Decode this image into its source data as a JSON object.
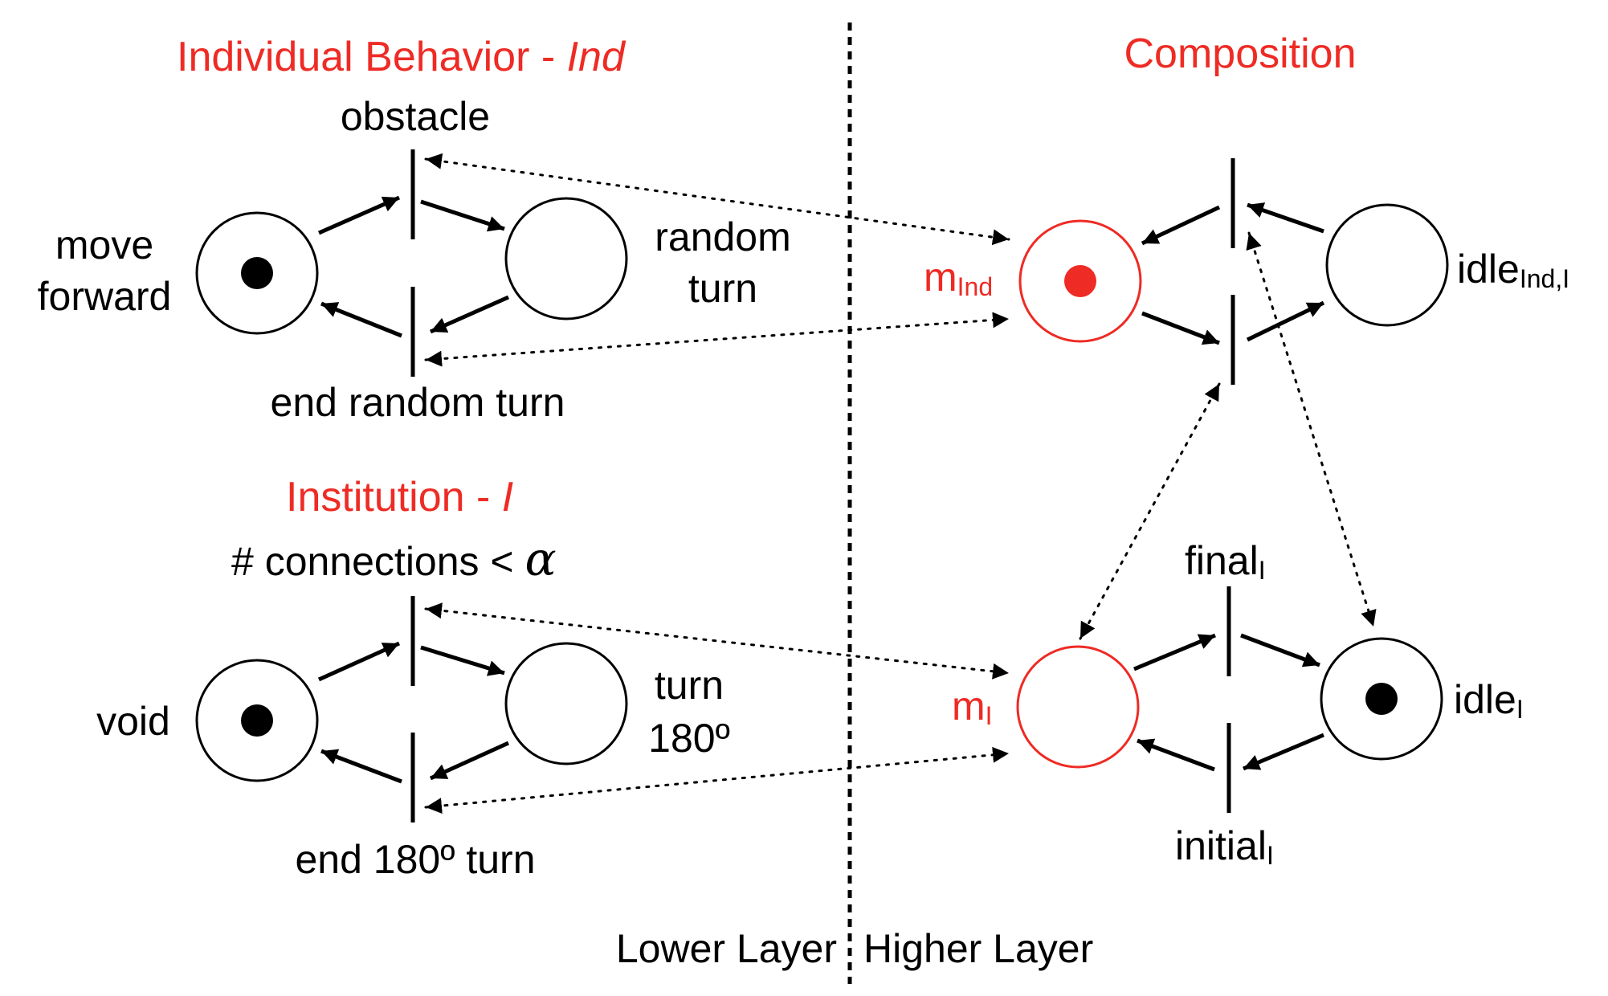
{
  "colors": {
    "accent": "#ee2b24",
    "ink": "#000000"
  },
  "titles": {
    "individual_prefix": "Individual Behavior - ",
    "individual_italic": "Ind",
    "institution_prefix": "Institution - ",
    "institution_italic": "I",
    "composition": "Composition"
  },
  "individual": {
    "place_move_forward_line1": "move",
    "place_move_forward_line2": "forward",
    "place_random_turn_line1": "random",
    "place_random_turn_line2": "turn",
    "transition_obstacle": "obstacle",
    "transition_end_random_turn": "end random turn"
  },
  "institution": {
    "place_void": "void",
    "place_turn_line1": "turn",
    "place_turn_line2": "180º",
    "transition_connections": "# connections < ",
    "transition_connections_symbol": "α",
    "transition_end_turn": "end 180º turn"
  },
  "composition": {
    "m_ind_base": "m",
    "m_ind_sub": "Ind",
    "idle_ind_base": "idle",
    "idle_ind_sub": "Ind,I",
    "m_i_base": "m",
    "m_i_sub": "I",
    "idle_i_base": "idle",
    "idle_i_sub": "I",
    "final_base": "final",
    "final_sub": "I",
    "initial_base": "initial",
    "initial_sub": "I"
  },
  "layers": {
    "lower": "Lower Layer",
    "higher": "Higher Layer"
  }
}
